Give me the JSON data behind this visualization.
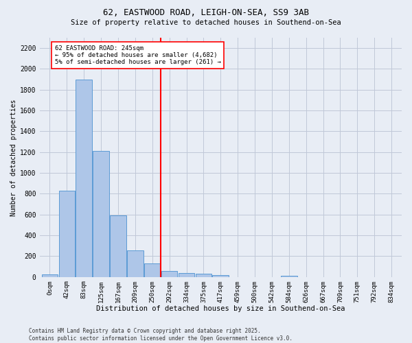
{
  "title1": "62, EASTWOOD ROAD, LEIGH-ON-SEA, SS9 3AB",
  "title2": "Size of property relative to detached houses in Southend-on-Sea",
  "xlabel": "Distribution of detached houses by size in Southend-on-Sea",
  "ylabel": "Number of detached properties",
  "bar_labels": [
    "0sqm",
    "42sqm",
    "83sqm",
    "125sqm",
    "167sqm",
    "209sqm",
    "250sqm",
    "292sqm",
    "334sqm",
    "375sqm",
    "417sqm",
    "459sqm",
    "500sqm",
    "542sqm",
    "584sqm",
    "626sqm",
    "667sqm",
    "709sqm",
    "751sqm",
    "792sqm",
    "834sqm"
  ],
  "bar_values": [
    25,
    830,
    1900,
    1210,
    590,
    255,
    130,
    55,
    40,
    30,
    20,
    0,
    0,
    0,
    10,
    0,
    0,
    0,
    0,
    0,
    0
  ],
  "bar_color": "#aec6e8",
  "bar_edge_color": "#5b9bd5",
  "vline_x": 6.5,
  "vline_color": "red",
  "annotation_text": "62 EASTWOOD ROAD: 245sqm\n← 95% of detached houses are smaller (4,682)\n5% of semi-detached houses are larger (261) →",
  "annotation_box_color": "white",
  "annotation_box_edge_color": "red",
  "ylim": [
    0,
    2300
  ],
  "yticks": [
    0,
    200,
    400,
    600,
    800,
    1000,
    1200,
    1400,
    1600,
    1800,
    2000,
    2200
  ],
  "grid_color": "#c0c8d8",
  "bg_color": "#e8edf5",
  "footnote": "Contains HM Land Registry data © Crown copyright and database right 2025.\nContains public sector information licensed under the Open Government Licence v3.0."
}
